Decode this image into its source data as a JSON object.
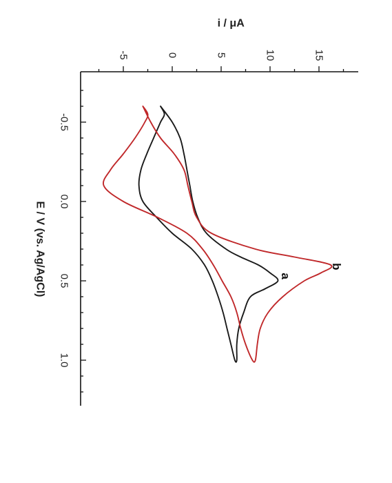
{
  "chart_data": {
    "type": "line",
    "orientation": "rotated 90 degrees clockwise (E axis runs top-to-bottom on the left, i axis runs left-to-right on top)",
    "title": "",
    "xlabel": "E / V (vs. Ag/AgCl)",
    "ylabel": "i / μA",
    "xlim": [
      -0.8,
      1.25
    ],
    "ylim": [
      -8,
      18
    ],
    "xticks": [
      {
        "value": -0.5,
        "label": "-0.5"
      },
      {
        "value": 0.0,
        "label": "0.0"
      },
      {
        "value": 0.5,
        "label": "0.5"
      },
      {
        "value": 1.0,
        "label": "1.0"
      }
    ],
    "yticks": [
      {
        "value": -5,
        "label": "-5"
      },
      {
        "value": 0,
        "label": "0"
      },
      {
        "value": 5,
        "label": "5"
      },
      {
        "value": 10,
        "label": "10"
      },
      {
        "value": 15,
        "label": "15"
      }
    ],
    "grid": false,
    "legend": "none (curves labelled directly)",
    "series": [
      {
        "name": "a",
        "color": "#1a1a1a",
        "label_at": {
          "x": 0.47,
          "y": 11.6
        },
        "x": [
          -0.6,
          -0.5,
          -0.4,
          -0.3,
          -0.2,
          -0.1,
          0.0,
          0.1,
          0.2,
          0.3,
          0.35,
          0.4,
          0.45,
          0.5,
          0.55,
          0.6,
          0.7,
          0.8,
          0.9,
          1.0,
          1.0,
          0.9,
          0.8,
          0.7,
          0.6,
          0.5,
          0.4,
          0.3,
          0.2,
          0.1,
          0.0,
          -0.1,
          -0.2,
          -0.3,
          -0.4,
          -0.5,
          -0.55,
          -0.6
        ],
        "y": [
          -1.2,
          0.0,
          0.8,
          1.2,
          1.5,
          1.8,
          2.1,
          2.6,
          3.5,
          5.5,
          7.0,
          8.8,
          10.0,
          10.8,
          9.5,
          8.0,
          7.3,
          6.8,
          6.6,
          6.6,
          6.4,
          6.0,
          5.6,
          5.2,
          4.7,
          4.1,
          3.3,
          2.0,
          0.0,
          -1.6,
          -3.0,
          -3.4,
          -3.2,
          -2.6,
          -1.9,
          -1.2,
          -0.8,
          -1.2
        ]
      },
      {
        "name": "b",
        "color": "#c0282a",
        "label_at": {
          "x": 0.41,
          "y": 16.8
        },
        "x": [
          -0.6,
          -0.5,
          -0.4,
          -0.3,
          -0.2,
          -0.1,
          0.0,
          0.1,
          0.2,
          0.3,
          0.35,
          0.4,
          0.45,
          0.5,
          0.6,
          0.7,
          0.8,
          0.9,
          1.0,
          1.0,
          0.9,
          0.8,
          0.7,
          0.6,
          0.5,
          0.4,
          0.3,
          0.2,
          0.1,
          0.0,
          -0.1,
          -0.2,
          -0.3,
          -0.4,
          -0.5,
          -0.55,
          -0.6
        ],
        "y": [
          -3.0,
          -2.2,
          -1.2,
          0.2,
          1.2,
          1.6,
          2.0,
          2.5,
          4.0,
          8.5,
          12.5,
          16.2,
          15.2,
          13.5,
          11.3,
          9.8,
          9.0,
          8.7,
          8.5,
          8.2,
          7.5,
          7.0,
          6.6,
          6.0,
          5.1,
          4.2,
          3.1,
          1.5,
          -1.5,
          -5.0,
          -7.0,
          -6.3,
          -5.0,
          -3.8,
          -2.8,
          -2.5,
          -3.0
        ]
      }
    ]
  }
}
